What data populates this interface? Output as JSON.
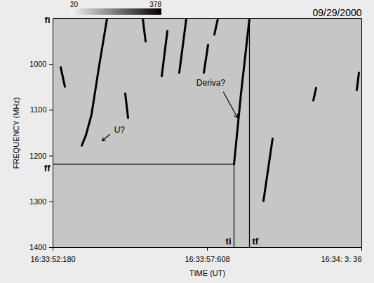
{
  "chart_data": {
    "type": "spectrogram",
    "title": "09/29/2000",
    "xlabel": "TIME (UT)",
    "ylabel": "FREQUENCY (MHz)",
    "xlim": [
      59632.18,
      59643.036
    ],
    "xticks": [
      {
        "value": 59632.18,
        "label": "16:33:52:180"
      },
      {
        "value": 59637.608,
        "label": "16:33:57:608"
      },
      {
        "value": 59643.036,
        "label": "16:34: 3: 36"
      }
    ],
    "ylim": [
      1400,
      900
    ],
    "yticks": [
      1000,
      1100,
      1200,
      1300,
      1400
    ],
    "color": "#000000",
    "colorbar": {
      "range": [
        20,
        378
      ],
      "ticks": [
        20,
        378
      ]
    },
    "bursts": [
      {
        "x": [
          59632.451,
          59632.599
        ],
        "y": [
          1006.1,
          1048.5
        ]
      },
      {
        "x": [
          59633.192,
          59633.34,
          59633.537,
          59633.784,
          59634.08
        ],
        "y": [
          1177.3,
          1154.5,
          1109.1,
          1010.6,
          900
        ]
      },
      {
        "x": [
          59634.721,
          59634.82
        ],
        "y": [
          1063.6,
          1116.7
        ]
      },
      {
        "x": [
          59635.338,
          59635.437
        ],
        "y": [
          900,
          950
        ]
      },
      {
        "x": [
          59636.004,
          59636.202
        ],
        "y": [
          1025.8,
          927.3
        ]
      },
      {
        "x": [
          59636.621,
          59636.868
        ],
        "y": [
          1018.2,
          900
        ]
      },
      {
        "x": [
          59637.485,
          59637.633
        ],
        "y": [
          1018.2,
          957.6
        ]
      },
      {
        "x": [
          59637.855,
          59637.978
        ],
        "y": [
          934.8,
          900
        ]
      },
      {
        "x": [
          59638.546,
          59638.792,
          59639.088
        ],
        "y": [
          1218,
          1063.6,
          900
        ]
      },
      {
        "x": [
          59639.581,
          59639.902
        ],
        "y": [
          1298.5,
          1162.1
        ]
      },
      {
        "x": [
          59641.334,
          59641.432
        ],
        "y": [
          1078.8,
          1051.5
        ]
      },
      {
        "x": [
          59642.863,
          59642.937
        ],
        "y": [
          1056.1,
          1018.2
        ]
      }
    ],
    "levels": [
      {
        "label": "fi",
        "axis": "y",
        "value": 900
      },
      {
        "label": "ff",
        "axis": "y",
        "value": 1218
      },
      {
        "label": "ti",
        "axis": "x",
        "value": 59638.546
      },
      {
        "label": "tf",
        "axis": "x",
        "value": 59639.088
      }
    ],
    "annotations": [
      {
        "text": "U?",
        "x": 59634.52,
        "y": 1144,
        "arrow_from": [
          59634.18,
          1153
        ],
        "arrow_to": [
          59633.907,
          1167
        ]
      },
      {
        "text": "Deriva?",
        "x": 59637.731,
        "y": 1041,
        "arrow_from": [
          59638.176,
          1060.6
        ],
        "arrow_to": [
          59638.669,
          1116.6
        ]
      }
    ]
  }
}
